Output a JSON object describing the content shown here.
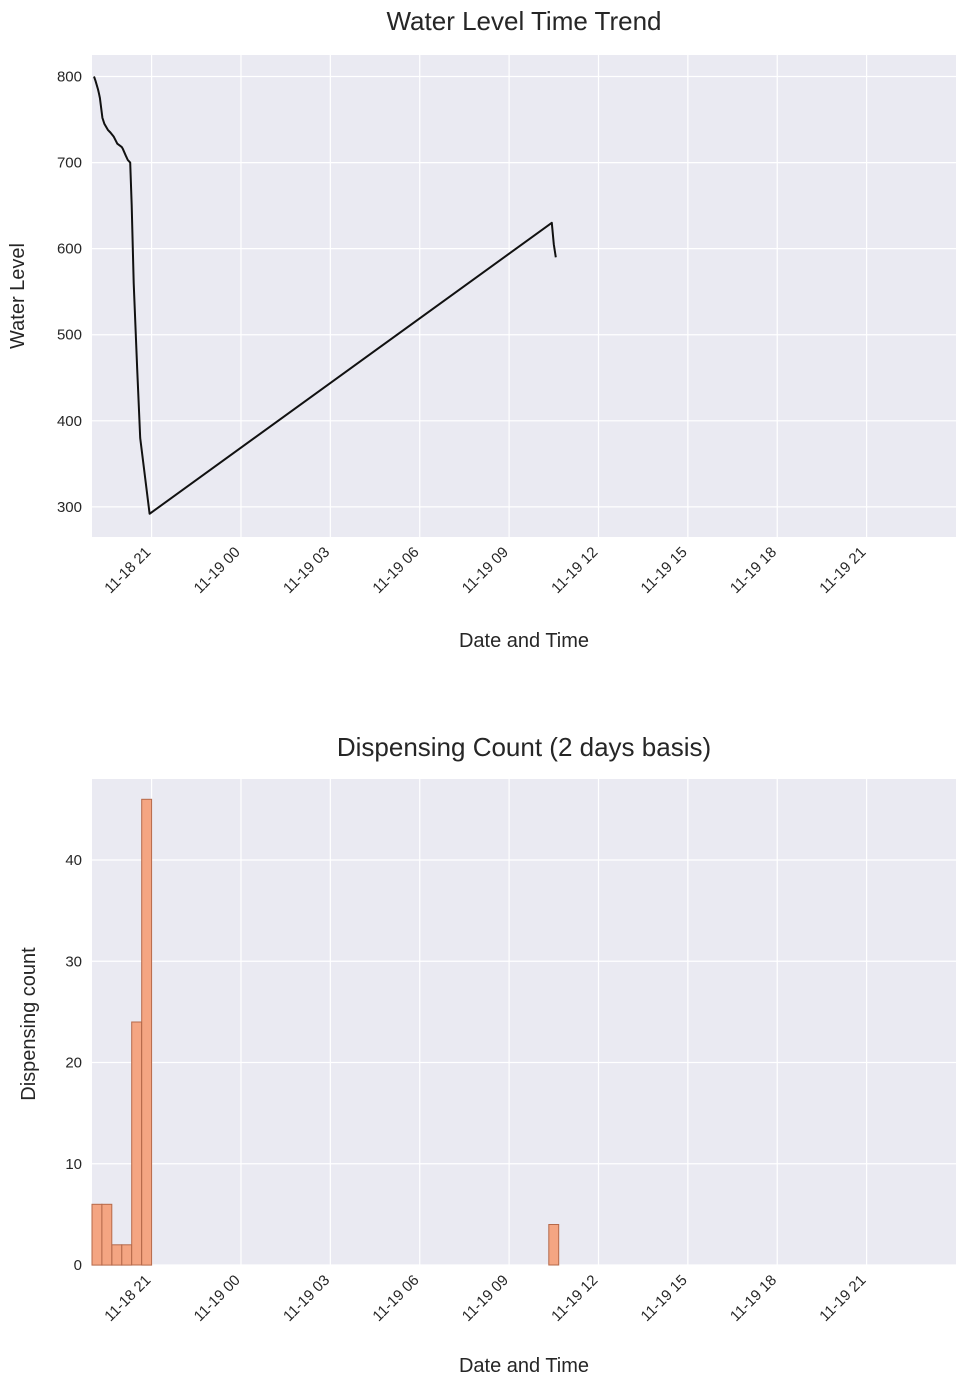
{
  "chart_data": [
    {
      "type": "line",
      "title": "Water Level Time Trend",
      "xlabel": "Date and Time",
      "ylabel": "Water Level",
      "x_unit": "datetime",
      "xlim": [
        "2023-11-18 19:00",
        "2023-11-20 00:00"
      ],
      "ylim": [
        265,
        825
      ],
      "x_ticks": [
        "11-18 21",
        "11-19 00",
        "11-19 03",
        "11-19 06",
        "11-19 09",
        "11-19 12",
        "11-19 15",
        "11-19 18",
        "11-19 21"
      ],
      "y_ticks": [
        300,
        400,
        500,
        600,
        700,
        800
      ],
      "grid": true,
      "line_color": "#111111",
      "background_color": "#eaeaf2",
      "series": [
        {
          "x": [
            "2023-11-18 19:04",
            "2023-11-18 19:07",
            "2023-11-18 19:12",
            "2023-11-18 19:14",
            "2023-11-18 19:16",
            "2023-11-18 19:21",
            "2023-11-18 19:25",
            "2023-11-18 19:32",
            "2023-11-18 19:37",
            "2023-11-18 19:44",
            "2023-11-18 19:51",
            "2023-11-18 20:00",
            "2023-11-18 20:02",
            "2023-11-18 20:08",
            "2023-11-18 20:12",
            "2023-11-18 20:17",
            "2023-11-18 20:20",
            "2023-11-18 20:24",
            "2023-11-18 20:31",
            "2023-11-18 20:37",
            "2023-11-18 20:56",
            "2023-11-19 10:26",
            "2023-11-19 10:30",
            "2023-11-19 10:34"
          ],
          "y": [
            800,
            795,
            785,
            780,
            775,
            752,
            745,
            738,
            735,
            730,
            722,
            718,
            716,
            708,
            703,
            700,
            650,
            560,
            460,
            380,
            292,
            630,
            605,
            590
          ]
        }
      ]
    },
    {
      "type": "bar",
      "title": "Dispensing Count (2 days basis)",
      "xlabel": "Date and Time",
      "ylabel": "Dispensing count",
      "x_unit": "datetime",
      "xlim": [
        "2023-11-18 19:00",
        "2023-11-20 00:00"
      ],
      "ylim": [
        0,
        48
      ],
      "x_ticks": [
        "11-18 21",
        "11-19 00",
        "11-19 03",
        "11-19 06",
        "11-19 09",
        "11-19 12",
        "11-19 15",
        "11-19 18",
        "11-19 21"
      ],
      "y_ticks": [
        0,
        10,
        20,
        30,
        40
      ],
      "grid": true,
      "bar_color": "#f4a582",
      "bar_edge_color": "#b5694a",
      "background_color": "#eaeaf2",
      "bin_minutes": 20,
      "bins": [
        {
          "start": "2023-11-18 19:00",
          "value": 6
        },
        {
          "start": "2023-11-18 19:20",
          "value": 6
        },
        {
          "start": "2023-11-18 19:40",
          "value": 2
        },
        {
          "start": "2023-11-18 20:00",
          "value": 2
        },
        {
          "start": "2023-11-18 20:20",
          "value": 24
        },
        {
          "start": "2023-11-18 20:40",
          "value": 46
        },
        {
          "start": "2023-11-19 10:20",
          "value": 4
        }
      ]
    }
  ]
}
